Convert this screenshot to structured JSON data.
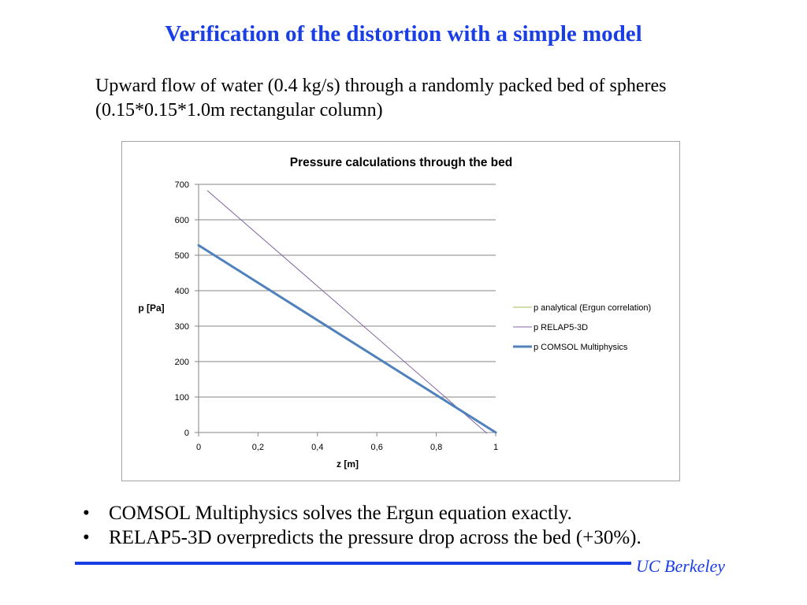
{
  "slide": {
    "title": "Verification of the distortion with a simple model",
    "intro": "Upward flow of water (0.4 kg/s) through a randomly packed bed of spheres (0.15*0.15*1.0m rectangular column)",
    "bullets": [
      "COMSOL Multiphysics solves the Ergun equation exactly.",
      "RELAP5-3D overpredicts the pressure drop across the bed (+30%)."
    ],
    "bullet_symbol": "•",
    "footer": "UC Berkeley"
  },
  "colors": {
    "title": "#1a3ee6",
    "footer": "#1a3ee6",
    "analytical": "#9bbb59",
    "relap": "#8064a2",
    "comsol": "#4f81bd",
    "grid": "#868686"
  },
  "chart_data": {
    "type": "line",
    "title": "Pressure calculations through the bed",
    "xlabel": "z [m]",
    "ylabel": "p [Pa]",
    "xlim": [
      0,
      1
    ],
    "ylim": [
      0,
      700
    ],
    "x_ticks": [
      0,
      0.2,
      0.4,
      0.6,
      0.8,
      1
    ],
    "x_tick_labels": [
      "0",
      "0,2",
      "0,4",
      "0,6",
      "0,8",
      "1"
    ],
    "y_ticks": [
      0,
      100,
      200,
      300,
      400,
      500,
      600,
      700
    ],
    "y_tick_labels": [
      "0",
      "100",
      "200",
      "300",
      "400",
      "500",
      "600",
      "700"
    ],
    "grid": "horizontal",
    "legend_position": "right",
    "series": [
      {
        "name": "p analytical (Ergun correlation)",
        "color": "#9bbb59",
        "width": 1,
        "x": [
          0,
          1
        ],
        "y": [
          528,
          0
        ]
      },
      {
        "name": "p RELAP5-3D",
        "color": "#8064a2",
        "width": 1,
        "x": [
          0.03,
          0.97
        ],
        "y": [
          682,
          -2
        ]
      },
      {
        "name": "p COMSOL Multiphysics",
        "color": "#4f81bd",
        "width": 3,
        "x": [
          0,
          1
        ],
        "y": [
          528,
          0
        ]
      }
    ]
  }
}
